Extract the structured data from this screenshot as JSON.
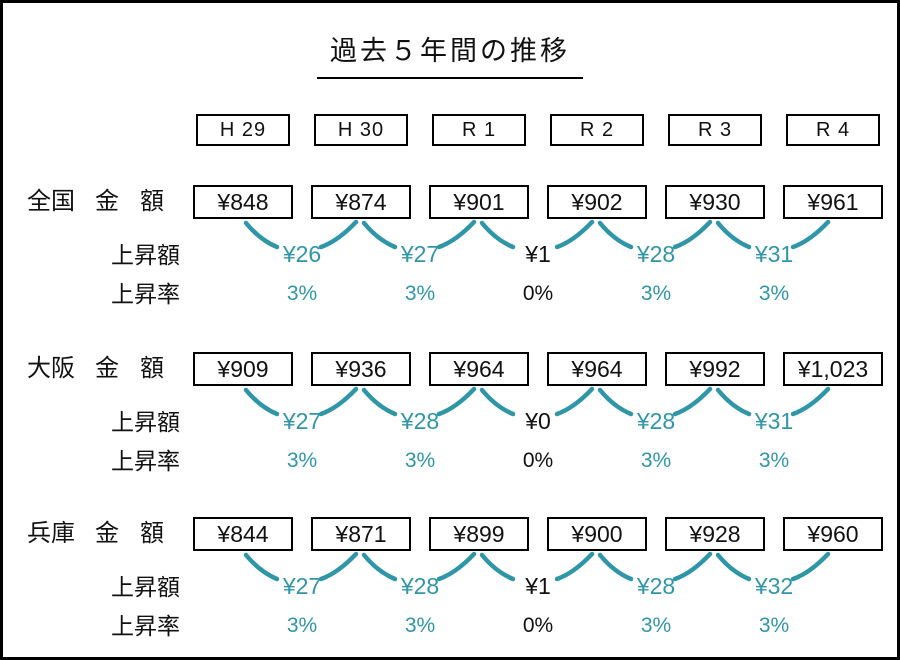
{
  "page": {
    "title": "過去５年間の推移"
  },
  "colors": {
    "accent": "#2f96a8",
    "text": "#111111",
    "border": "#000000",
    "background": "#ffffff"
  },
  "years": [
    "H 29",
    "H 30",
    "R 1",
    "R 2",
    "R 3",
    "R 4"
  ],
  "row_labels": {
    "amount": "金額",
    "increase": "上昇額",
    "rate": "上昇率"
  },
  "regions": [
    {
      "name": "全国",
      "amounts": [
        "¥848",
        "¥874",
        "¥901",
        "¥902",
        "¥930",
        "¥961"
      ],
      "increases": [
        {
          "text": "¥26",
          "accent": true
        },
        {
          "text": "¥27",
          "accent": true
        },
        {
          "text": "¥1",
          "accent": false
        },
        {
          "text": "¥28",
          "accent": true
        },
        {
          "text": "¥31",
          "accent": true
        }
      ],
      "rates": [
        {
          "text": "3%",
          "accent": true
        },
        {
          "text": "3%",
          "accent": true
        },
        {
          "text": "0%",
          "accent": false
        },
        {
          "text": "3%",
          "accent": true
        },
        {
          "text": "3%",
          "accent": true
        }
      ]
    },
    {
      "name": "大阪",
      "amounts": [
        "¥909",
        "¥936",
        "¥964",
        "¥964",
        "¥992",
        "¥1,023"
      ],
      "increases": [
        {
          "text": "¥27",
          "accent": true
        },
        {
          "text": "¥28",
          "accent": true
        },
        {
          "text": "¥0",
          "accent": false
        },
        {
          "text": "¥28",
          "accent": true
        },
        {
          "text": "¥31",
          "accent": true
        }
      ],
      "rates": [
        {
          "text": "3%",
          "accent": true
        },
        {
          "text": "3%",
          "accent": true
        },
        {
          "text": "0%",
          "accent": false
        },
        {
          "text": "3%",
          "accent": true
        },
        {
          "text": "3%",
          "accent": true
        }
      ]
    },
    {
      "name": "兵庫",
      "amounts": [
        "¥844",
        "¥871",
        "¥899",
        "¥900",
        "¥928",
        "¥960"
      ],
      "increases": [
        {
          "text": "¥27",
          "accent": true
        },
        {
          "text": "¥28",
          "accent": true
        },
        {
          "text": "¥1",
          "accent": false
        },
        {
          "text": "¥28",
          "accent": true
        },
        {
          "text": "¥32",
          "accent": true
        }
      ],
      "rates": [
        {
          "text": "3%",
          "accent": true
        },
        {
          "text": "3%",
          "accent": true
        },
        {
          "text": "0%",
          "accent": false
        },
        {
          "text": "3%",
          "accent": true
        },
        {
          "text": "3%",
          "accent": true
        }
      ]
    }
  ],
  "chart_data": {
    "type": "table",
    "title": "過去５年間の推移",
    "categories": [
      "H29",
      "H30",
      "R1",
      "R2",
      "R3",
      "R4"
    ],
    "row_labels": [
      "金額",
      "上昇額",
      "上昇率"
    ],
    "unit": "¥",
    "series": [
      {
        "name": "全国",
        "amounts": [
          848,
          874,
          901,
          902,
          930,
          961
        ],
        "increase": [
          26,
          27,
          1,
          28,
          31
        ],
        "increase_rate_pct": [
          3,
          3,
          0,
          3,
          3
        ]
      },
      {
        "name": "大阪",
        "amounts": [
          909,
          936,
          964,
          964,
          992,
          1023
        ],
        "increase": [
          27,
          28,
          0,
          28,
          31
        ],
        "increase_rate_pct": [
          3,
          3,
          0,
          3,
          3
        ]
      },
      {
        "name": "兵庫",
        "amounts": [
          844,
          871,
          899,
          900,
          928,
          960
        ],
        "increase": [
          27,
          28,
          1,
          28,
          32
        ],
        "increase_rate_pct": [
          3,
          3,
          0,
          3,
          3
        ]
      }
    ]
  }
}
